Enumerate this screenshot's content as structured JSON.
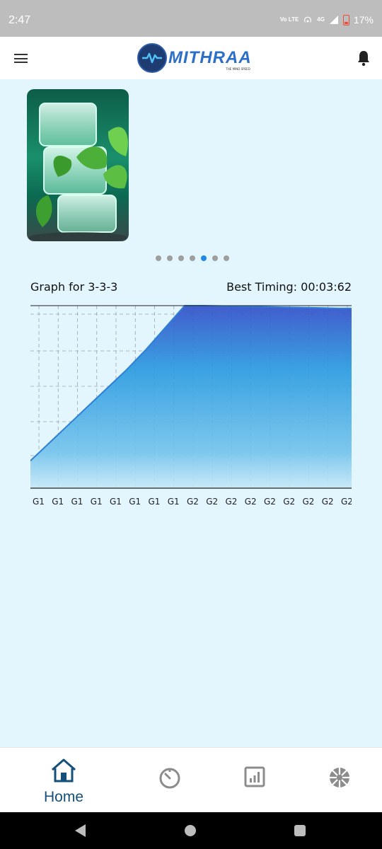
{
  "status_bar": {
    "time": "2:47",
    "network": "Vo LTE",
    "network_type": "4G",
    "battery": "17%"
  },
  "app_bar": {
    "logo_name": "MITHRAA",
    "logo_tagline": "THE MIND SPEED",
    "menu_icon": "hamburger-icon",
    "bell_icon": "bell-icon"
  },
  "carousel": {
    "dot_count": 7,
    "active_index": 4
  },
  "graph": {
    "title": "Graph for 3-3-3",
    "best_timing": "Best Timing: 00:03:62"
  },
  "chart_data": {
    "type": "area",
    "title": "Graph for 3-3-3",
    "x": [
      "G1",
      "G1",
      "G1",
      "G1",
      "G1",
      "G1",
      "G1",
      "G1",
      "G2",
      "G2",
      "G2",
      "G2",
      "G2",
      "G2",
      "G2",
      "G2",
      "G2"
    ],
    "values": [
      0.15,
      0.25,
      0.35,
      0.45,
      0.55,
      0.65,
      0.76,
      0.88,
      1.0,
      1.0,
      0.998,
      0.996,
      0.994,
      0.992,
      0.99,
      0.988,
      0.985
    ],
    "xlabel": "",
    "ylabel": "",
    "ylim": [
      0,
      1
    ],
    "grid": true,
    "colors": {
      "fill_top": "#3350c8",
      "fill_mid": "#2b9be0",
      "fill_bottom": "#c6e8f8",
      "line": "#2f7fd6"
    }
  },
  "bottom_nav": {
    "items": [
      {
        "id": "home",
        "label": "Home",
        "icon": "home-icon",
        "active": true
      },
      {
        "id": "timer",
        "label": "",
        "icon": "stopwatch-icon",
        "active": false
      },
      {
        "id": "stats",
        "label": "",
        "icon": "bar-chart-icon",
        "active": false
      },
      {
        "id": "aperture",
        "label": "",
        "icon": "aperture-icon",
        "active": false
      }
    ]
  },
  "colors": {
    "background": "#e3f5fd",
    "accent": "#1e88e5",
    "nav_active": "#14507a",
    "nav_inactive": "#9e9e9e"
  }
}
